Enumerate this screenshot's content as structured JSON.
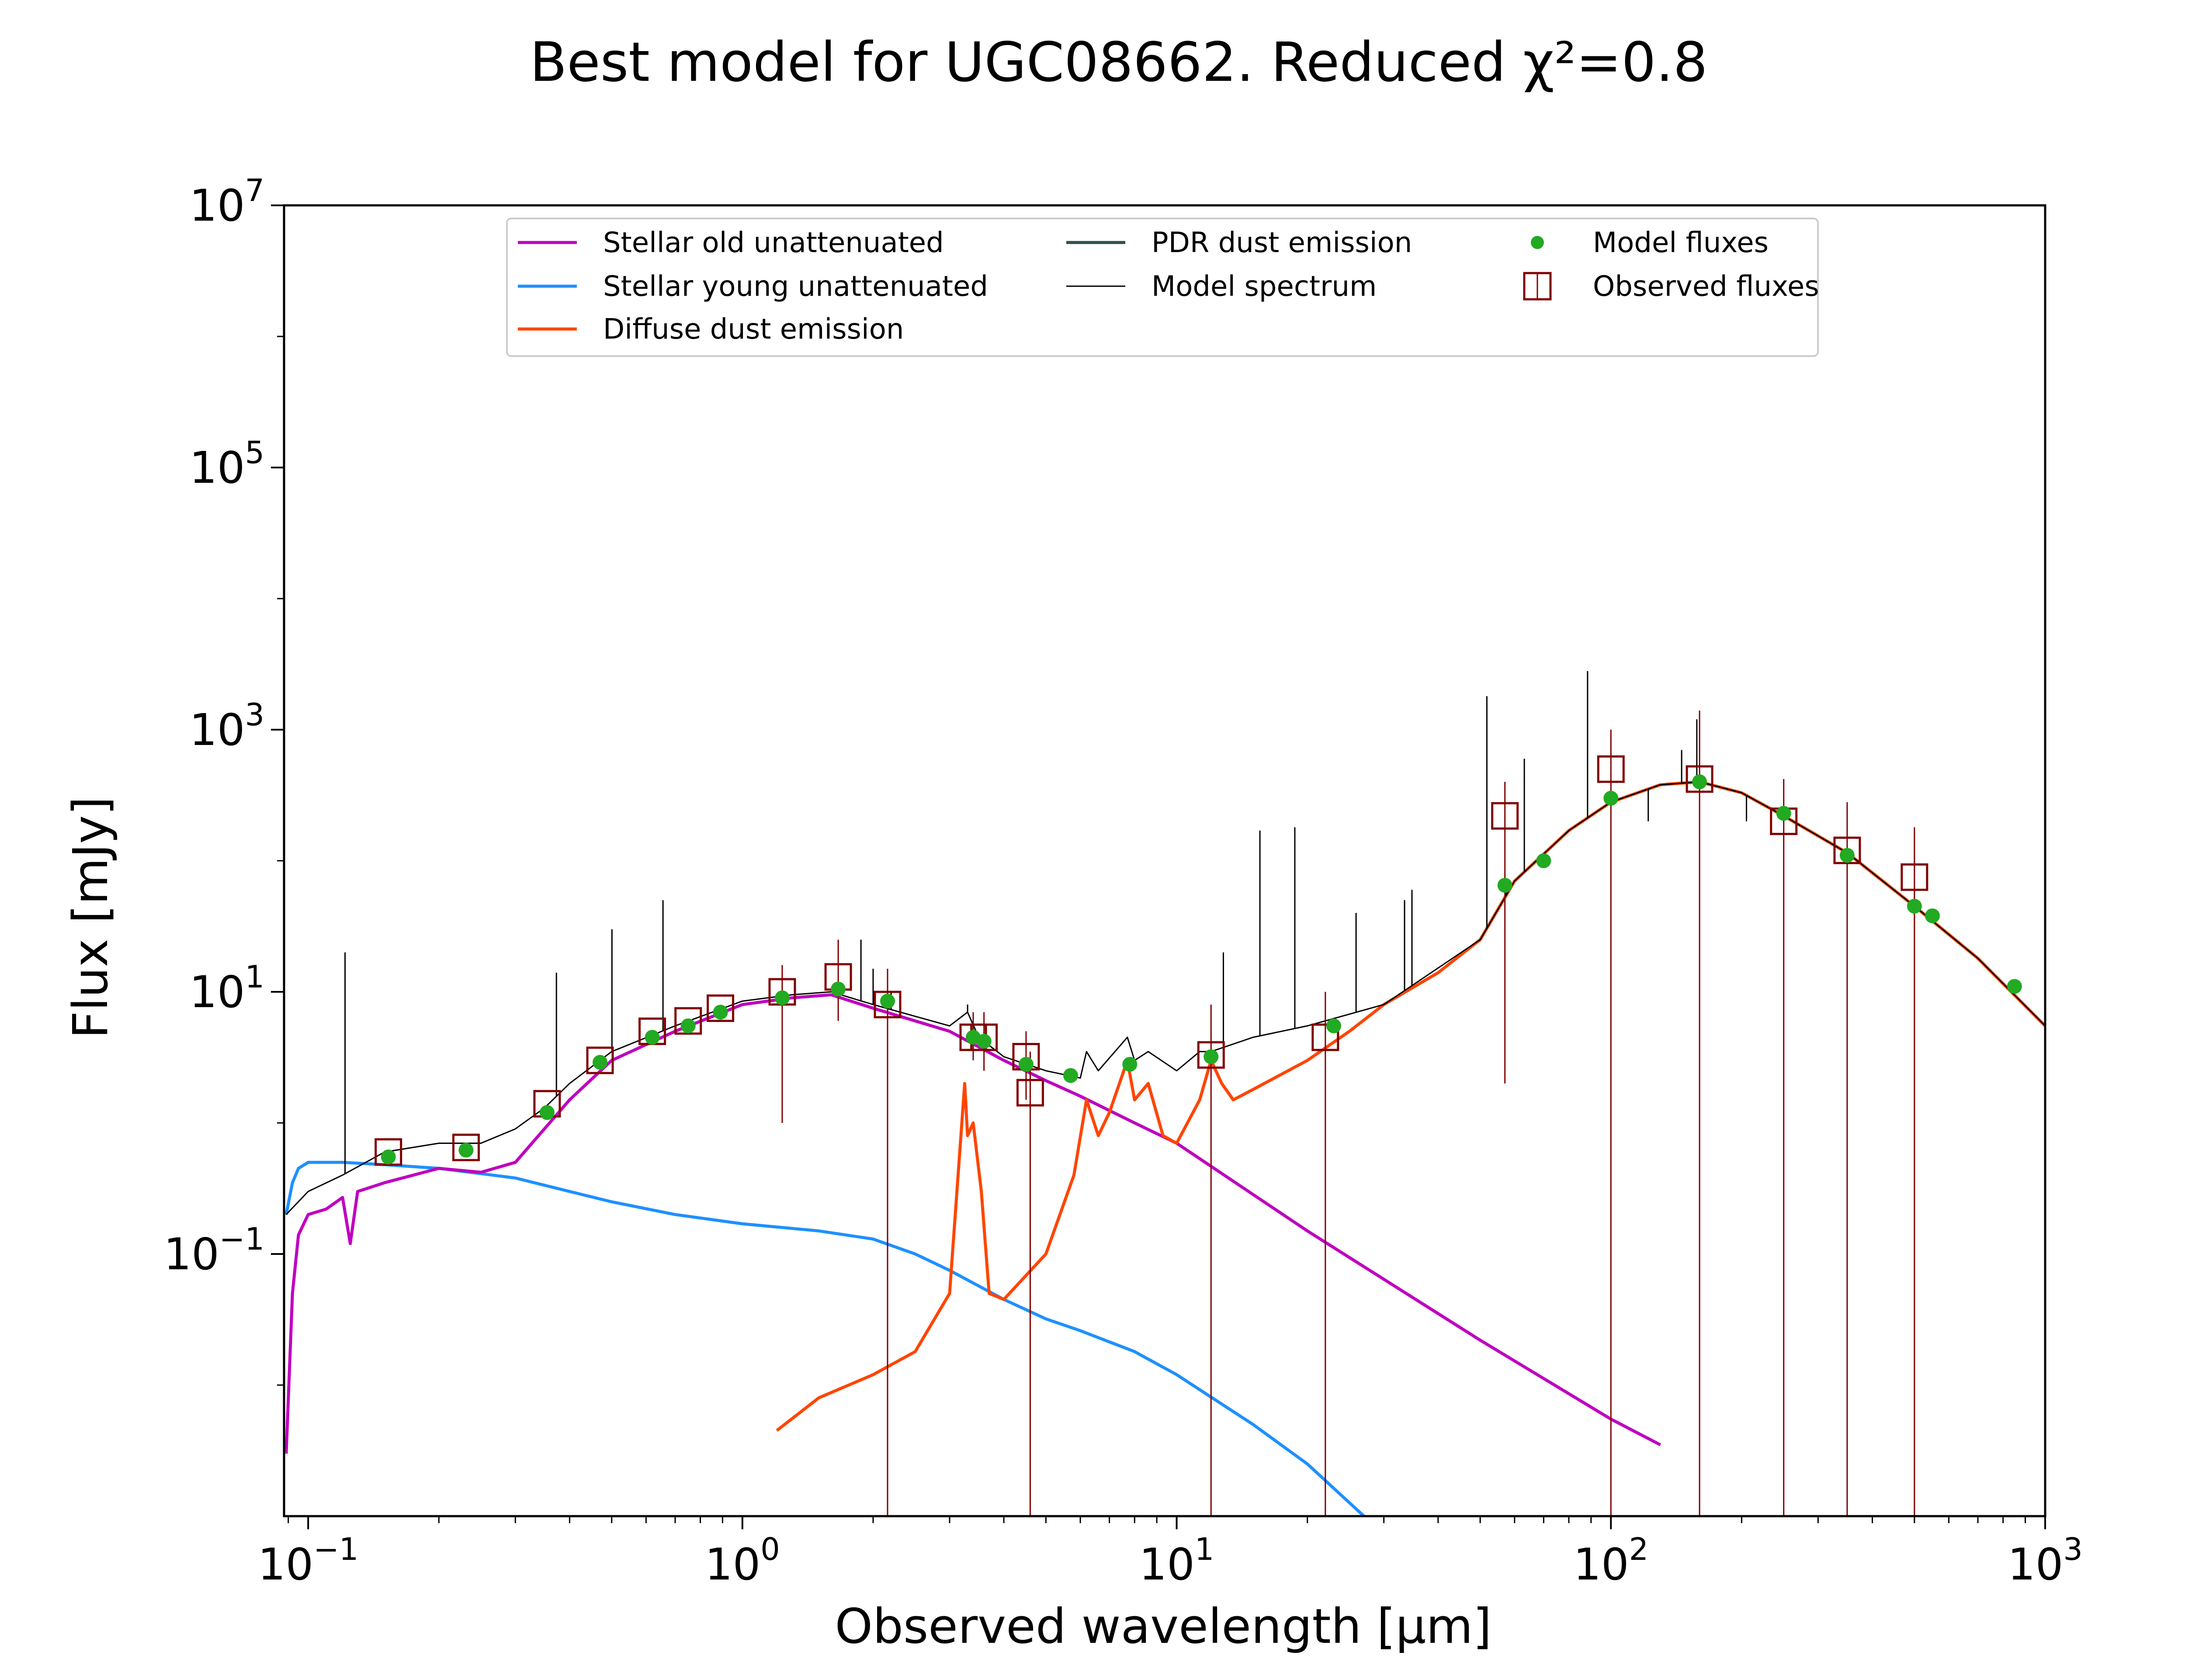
{
  "chart_data": {
    "type": "line",
    "title": "Best model for UGC08662. Reduced χ²=0.8",
    "xlabel": "Observed wavelength [μm]",
    "ylabel": "Flux [mJy]",
    "xscale": "log",
    "yscale": "log",
    "xlim": [
      0.088,
      1000
    ],
    "ylim": [
      0.001,
      10000000
    ],
    "x_ticks": [
      {
        "value": 0.1,
        "label": "10^-1"
      },
      {
        "value": 1,
        "label": "10^0"
      },
      {
        "value": 10,
        "label": "10^1"
      },
      {
        "value": 100,
        "label": "10^2"
      },
      {
        "value": 1000,
        "label": "10^3"
      }
    ],
    "y_ticks": [
      {
        "value": 0.1,
        "label": "10^-1"
      },
      {
        "value": 10,
        "label": "10^1"
      },
      {
        "value": 1000,
        "label": "10^3"
      },
      {
        "value": 100000,
        "label": "10^5"
      },
      {
        "value": 10000000,
        "label": "10^7"
      }
    ],
    "grid": false,
    "legend_position": "top-center",
    "colors": {
      "stellar_old": "#bf00bf",
      "stellar_young": "#1e90ff",
      "diffuse_dust": "#ff4500",
      "pdr_dust": "#2f4f4f",
      "model_spectrum": "#000000",
      "model_fluxes": "#22aa22",
      "observed_fluxes": "#800000"
    },
    "series": [
      {
        "name": "Stellar old unattenuated",
        "key": "stellar_old",
        "kind": "line",
        "points": [
          [
            0.089,
            0.003
          ],
          [
            0.092,
            0.05
          ],
          [
            0.095,
            0.14
          ],
          [
            0.1,
            0.2
          ],
          [
            0.11,
            0.22
          ],
          [
            0.12,
            0.27
          ],
          [
            0.125,
            0.12
          ],
          [
            0.13,
            0.3
          ],
          [
            0.15,
            0.35
          ],
          [
            0.2,
            0.45
          ],
          [
            0.25,
            0.42
          ],
          [
            0.3,
            0.5
          ],
          [
            0.35,
            0.9
          ],
          [
            0.4,
            1.5
          ],
          [
            0.5,
            3.0
          ],
          [
            0.7,
            5.0
          ],
          [
            1.0,
            8.0
          ],
          [
            1.3,
            9.0
          ],
          [
            1.6,
            9.5
          ],
          [
            2.0,
            7.5
          ],
          [
            2.5,
            6.0
          ],
          [
            3.0,
            5.0
          ],
          [
            4.0,
            3.0
          ],
          [
            5.0,
            2.1
          ],
          [
            6.0,
            1.6
          ],
          [
            8.0,
            1.0
          ],
          [
            10.0,
            0.7
          ],
          [
            20.0,
            0.15
          ],
          [
            50.0,
            0.022
          ],
          [
            100.0,
            0.0055
          ],
          [
            130.0,
            0.0035
          ]
        ]
      },
      {
        "name": "Stellar young unattenuated",
        "key": "stellar_young",
        "kind": "line",
        "points": [
          [
            0.089,
            0.2
          ],
          [
            0.092,
            0.35
          ],
          [
            0.095,
            0.45
          ],
          [
            0.1,
            0.5
          ],
          [
            0.12,
            0.5
          ],
          [
            0.15,
            0.48
          ],
          [
            0.2,
            0.45
          ],
          [
            0.3,
            0.38
          ],
          [
            0.4,
            0.3
          ],
          [
            0.5,
            0.25
          ],
          [
            0.7,
            0.2
          ],
          [
            1.0,
            0.17
          ],
          [
            1.5,
            0.15
          ],
          [
            2.0,
            0.13
          ],
          [
            2.5,
            0.1
          ],
          [
            3.0,
            0.075
          ],
          [
            4.0,
            0.045
          ],
          [
            5.0,
            0.032
          ],
          [
            6.0,
            0.026
          ],
          [
            8.0,
            0.018
          ],
          [
            10.0,
            0.012
          ],
          [
            15.0,
            0.005
          ],
          [
            20.0,
            0.0025
          ],
          [
            27.0,
            0.001
          ]
        ]
      },
      {
        "name": "Diffuse dust emission",
        "key": "diffuse_dust",
        "kind": "line",
        "points": [
          [
            1.2,
            0.0045
          ],
          [
            1.5,
            0.008
          ],
          [
            2.0,
            0.012
          ],
          [
            2.5,
            0.018
          ],
          [
            3.0,
            0.05
          ],
          [
            3.25,
            2.0
          ],
          [
            3.3,
            0.8
          ],
          [
            3.4,
            1.0
          ],
          [
            3.55,
            0.3
          ],
          [
            3.7,
            0.05
          ],
          [
            4.0,
            0.045
          ],
          [
            5.0,
            0.1
          ],
          [
            5.8,
            0.4
          ],
          [
            6.2,
            1.5
          ],
          [
            6.6,
            0.8
          ],
          [
            7.0,
            1.2
          ],
          [
            7.7,
            3.0
          ],
          [
            8.0,
            1.5
          ],
          [
            8.6,
            2.0
          ],
          [
            9.3,
            0.8
          ],
          [
            10.0,
            0.7
          ],
          [
            11.3,
            1.5
          ],
          [
            12.0,
            3.0
          ],
          [
            12.7,
            2.0
          ],
          [
            13.5,
            1.5
          ],
          [
            15.0,
            1.8
          ],
          [
            20.0,
            3.0
          ],
          [
            25.0,
            5.0
          ],
          [
            30.0,
            8.0
          ],
          [
            40.0,
            14.0
          ],
          [
            50.0,
            25.0
          ],
          [
            60.0,
            70.0
          ],
          [
            80.0,
            170.0
          ],
          [
            100.0,
            280.0
          ],
          [
            130.0,
            380.0
          ],
          [
            160.0,
            400.0
          ],
          [
            200.0,
            330.0
          ],
          [
            250.0,
            220.0
          ],
          [
            350.0,
            115.0
          ],
          [
            500.0,
            45.0
          ],
          [
            700.0,
            18.0
          ],
          [
            1000.0,
            5.5
          ]
        ]
      },
      {
        "name": "PDR dust emission",
        "key": "pdr_dust",
        "kind": "line",
        "points": []
      },
      {
        "name": "Model spectrum",
        "key": "model_spectrum",
        "kind": "line",
        "points": [
          [
            0.089,
            0.2
          ],
          [
            0.1,
            0.3
          ],
          [
            0.12,
            0.4
          ],
          [
            0.15,
            0.6
          ],
          [
            0.2,
            0.7
          ],
          [
            0.25,
            0.7
          ],
          [
            0.3,
            0.9
          ],
          [
            0.35,
            1.3
          ],
          [
            0.4,
            2.0
          ],
          [
            0.5,
            3.5
          ],
          [
            0.7,
            5.5
          ],
          [
            1.0,
            8.5
          ],
          [
            1.3,
            9.5
          ],
          [
            1.6,
            10.0
          ],
          [
            2.0,
            8.0
          ],
          [
            2.5,
            6.5
          ],
          [
            3.0,
            5.5
          ],
          [
            3.3,
            7.0
          ],
          [
            3.5,
            4.5
          ],
          [
            4.0,
            3.2
          ],
          [
            5.0,
            2.5
          ],
          [
            6.0,
            2.2
          ],
          [
            6.2,
            3.5
          ],
          [
            6.6,
            2.5
          ],
          [
            7.7,
            4.5
          ],
          [
            8.0,
            3.0
          ],
          [
            8.6,
            3.5
          ],
          [
            10.0,
            2.5
          ],
          [
            11.3,
            3.5
          ],
          [
            12.0,
            3.5
          ],
          [
            15.0,
            4.5
          ],
          [
            20.0,
            5.5
          ],
          [
            30.0,
            8.0
          ],
          [
            50.0,
            25.0
          ],
          [
            60.0,
            70.0
          ],
          [
            80.0,
            170.0
          ],
          [
            100.0,
            280.0
          ],
          [
            130.0,
            380.0
          ],
          [
            160.0,
            400.0
          ],
          [
            200.0,
            330.0
          ],
          [
            250.0,
            220.0
          ],
          [
            350.0,
            115.0
          ],
          [
            500.0,
            45.0
          ],
          [
            700.0,
            18.0
          ],
          [
            1000.0,
            5.5
          ]
        ],
        "emission_lines": [
          [
            0.1216,
            20
          ],
          [
            0.373,
            14
          ],
          [
            0.5007,
            30
          ],
          [
            0.6563,
            50
          ],
          [
            1.875,
            25
          ],
          [
            2.0,
            15
          ],
          [
            2.2,
            10
          ],
          [
            3.3,
            8
          ],
          [
            12.81,
            20
          ],
          [
            15.55,
            170
          ],
          [
            18.71,
            180
          ],
          [
            25.89,
            40
          ],
          [
            33.48,
            50
          ],
          [
            34.82,
            60
          ],
          [
            51.8,
            1800
          ],
          [
            57.3,
            70
          ],
          [
            63.18,
            600
          ],
          [
            88.36,
            2800
          ],
          [
            121.9,
            200
          ],
          [
            145.5,
            700
          ],
          [
            157.7,
            1200
          ],
          [
            205.2,
            200
          ]
        ]
      },
      {
        "name": "Model fluxes",
        "key": "model_fluxes",
        "kind": "scatter",
        "points": [
          [
            0.153,
            0.55
          ],
          [
            0.231,
            0.62
          ],
          [
            0.355,
            1.2
          ],
          [
            0.47,
            2.9
          ],
          [
            0.62,
            4.5
          ],
          [
            0.75,
            5.5
          ],
          [
            0.89,
            7.0
          ],
          [
            1.235,
            9.0
          ],
          [
            1.662,
            10.5
          ],
          [
            2.159,
            8.5
          ],
          [
            3.4,
            4.5
          ],
          [
            3.6,
            4.2
          ],
          [
            4.5,
            2.8
          ],
          [
            5.7,
            2.3
          ],
          [
            7.8,
            2.8
          ],
          [
            12.0,
            3.2
          ],
          [
            23.0,
            5.5
          ],
          [
            57.0,
            65.0
          ],
          [
            70.0,
            100.0
          ],
          [
            100.0,
            300.0
          ],
          [
            160.0,
            400.0
          ],
          [
            250.0,
            230.0
          ],
          [
            350.0,
            110.0
          ],
          [
            500.0,
            45.0
          ],
          [
            550.0,
            38.0
          ],
          [
            850.0,
            11.0
          ]
        ]
      },
      {
        "name": "Observed fluxes",
        "key": "observed_fluxes",
        "kind": "errorbar",
        "points": [
          {
            "x": 0.153,
            "y": 0.6,
            "lo": 0.6,
            "hi": 0.6
          },
          {
            "x": 0.231,
            "y": 0.65,
            "lo": 0.65,
            "hi": 0.65
          },
          {
            "x": 0.355,
            "y": 1.4,
            "lo": 1.4,
            "hi": 1.4
          },
          {
            "x": 0.47,
            "y": 3.0,
            "lo": 3.0,
            "hi": 3.0
          },
          {
            "x": 0.62,
            "y": 5.0,
            "lo": 5.0,
            "hi": 5.0
          },
          {
            "x": 0.75,
            "y": 6.0,
            "lo": 6.0,
            "hi": 6.0
          },
          {
            "x": 0.89,
            "y": 7.5,
            "lo": 7.5,
            "hi": 7.5
          },
          {
            "x": 1.235,
            "y": 10.0,
            "lo": 1.0,
            "hi": 16.0
          },
          {
            "x": 1.662,
            "y": 13.0,
            "lo": 6.0,
            "hi": 25.0
          },
          {
            "x": 2.159,
            "y": 8.0,
            "lo": 0.001,
            "hi": 15.0
          },
          {
            "x": 3.4,
            "y": 4.5,
            "lo": 3.0,
            "hi": 7.0
          },
          {
            "x": 3.6,
            "y": 4.5,
            "lo": 2.5,
            "hi": 7.0
          },
          {
            "x": 4.5,
            "y": 3.2,
            "lo": 1.5,
            "hi": 5.0
          },
          {
            "x": 4.6,
            "y": 1.7,
            "lo": 0.001,
            "hi": 3.5
          },
          {
            "x": 12.0,
            "y": 3.3,
            "lo": 0.001,
            "hi": 8.0
          },
          {
            "x": 22.0,
            "y": 4.5,
            "lo": 0.001,
            "hi": 10.0
          },
          {
            "x": 57.0,
            "y": 220.0,
            "lo": 2.0,
            "hi": 400.0
          },
          {
            "x": 100.0,
            "y": 500.0,
            "lo": 0.001,
            "hi": 1000.0
          },
          {
            "x": 160.0,
            "y": 420.0,
            "lo": 0.001,
            "hi": 1400.0
          },
          {
            "x": 250.0,
            "y": 200.0,
            "lo": 0.001,
            "hi": 420.0
          },
          {
            "x": 350.0,
            "y": 120.0,
            "lo": 0.001,
            "hi": 280.0
          },
          {
            "x": 500.0,
            "y": 75.0,
            "lo": 0.001,
            "hi": 180.0
          }
        ]
      }
    ]
  }
}
